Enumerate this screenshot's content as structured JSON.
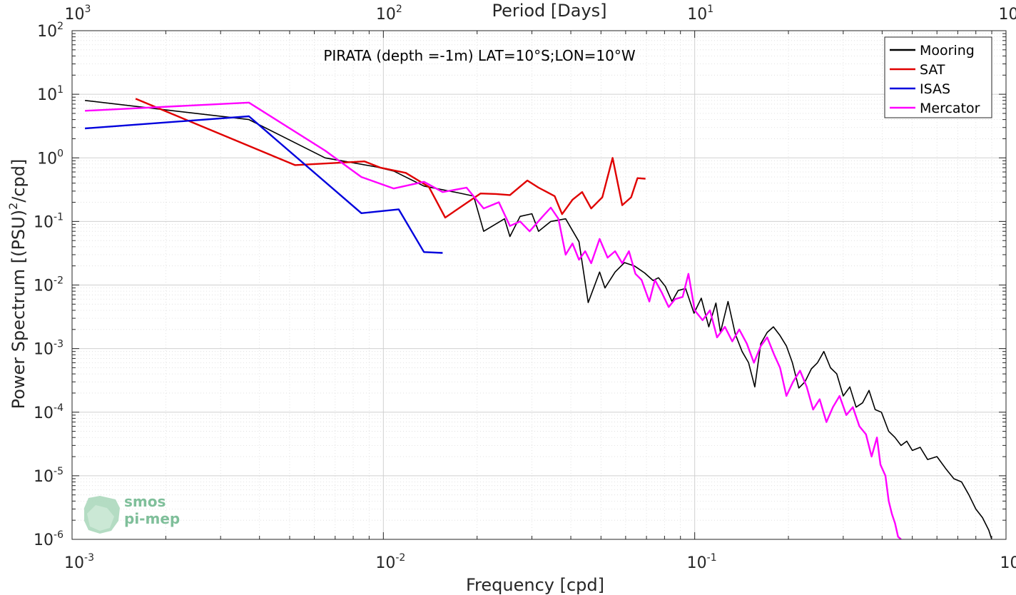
{
  "chart_data": {
    "type": "line",
    "title": "PIRATA (depth =-1m) LAT=10°S;LON=10°W",
    "xlabel": "Frequency [cpd]",
    "ylabel": "Power Spectrum [(PSU)",
    "ylabel_sup": "2",
    "ylabel_tail": "/cpd]",
    "top_xlabel": "Period [Days]",
    "x_scale": "log",
    "y_scale": "log",
    "xlim": [
      0.001,
      1
    ],
    "ylim": [
      1e-06,
      100
    ],
    "grid": true,
    "legend_position": "top-right",
    "x_ticks": [
      {
        "base": "10",
        "exp": "-3",
        "value": 0.001
      },
      {
        "base": "10",
        "exp": "-2",
        "value": 0.01
      },
      {
        "base": "10",
        "exp": "-1",
        "value": 0.1
      },
      {
        "base": "10",
        "exp": "0",
        "value": 1
      }
    ],
    "top_ticks": [
      {
        "base": "10",
        "exp": "3",
        "value": 0.001
      },
      {
        "base": "10",
        "exp": "2",
        "value": 0.01
      },
      {
        "base": "10",
        "exp": "1",
        "value": 0.1
      },
      {
        "base": "10",
        "exp": "0",
        "value": 1
      }
    ],
    "y_ticks": [
      {
        "base": "10",
        "exp": "2",
        "value": 100
      },
      {
        "base": "10",
        "exp": "1",
        "value": 10
      },
      {
        "base": "10",
        "exp": "0",
        "value": 1
      },
      {
        "base": "10",
        "exp": "-1",
        "value": 0.1
      },
      {
        "base": "10",
        "exp": "-2",
        "value": 0.01
      },
      {
        "base": "10",
        "exp": "-3",
        "value": 0.001
      },
      {
        "base": "10",
        "exp": "-4",
        "value": 0.0001
      },
      {
        "base": "10",
        "exp": "-5",
        "value": 1e-05
      },
      {
        "base": "10",
        "exp": "-6",
        "value": 1e-06
      }
    ],
    "series": [
      {
        "name": "Mooring",
        "color": "#000000",
        "stroke": 1.6,
        "points": [
          [
            0.0011,
            8.0
          ],
          [
            0.0037,
            4.0
          ],
          [
            0.0065,
            1.0
          ],
          [
            0.0095,
            0.72
          ],
          [
            0.0108,
            0.62
          ],
          [
            0.0135,
            0.36
          ],
          [
            0.0175,
            0.28
          ],
          [
            0.0195,
            0.25
          ],
          [
            0.021,
            0.07
          ],
          [
            0.0245,
            0.11
          ],
          [
            0.0255,
            0.058
          ],
          [
            0.0275,
            0.12
          ],
          [
            0.03,
            0.132
          ],
          [
            0.0315,
            0.07
          ],
          [
            0.0345,
            0.1
          ],
          [
            0.0385,
            0.11
          ],
          [
            0.0425,
            0.048
          ],
          [
            0.0455,
            0.0053
          ],
          [
            0.0495,
            0.016
          ],
          [
            0.0515,
            0.009
          ],
          [
            0.0555,
            0.016
          ],
          [
            0.0595,
            0.0225
          ],
          [
            0.064,
            0.02
          ],
          [
            0.069,
            0.0155
          ],
          [
            0.0735,
            0.0118
          ],
          [
            0.0765,
            0.013
          ],
          [
            0.0805,
            0.0095
          ],
          [
            0.0845,
            0.0055
          ],
          [
            0.0885,
            0.0082
          ],
          [
            0.0935,
            0.0088
          ],
          [
            0.0995,
            0.0036
          ],
          [
            0.105,
            0.0062
          ],
          [
            0.111,
            0.0022
          ],
          [
            0.117,
            0.0052
          ],
          [
            0.121,
            0.0018
          ],
          [
            0.128,
            0.0055
          ],
          [
            0.135,
            0.0017
          ],
          [
            0.142,
            0.0009
          ],
          [
            0.149,
            0.0006
          ],
          [
            0.156,
            0.00025
          ],
          [
            0.163,
            0.0012
          ],
          [
            0.171,
            0.0018
          ],
          [
            0.179,
            0.0022
          ],
          [
            0.188,
            0.0016
          ],
          [
            0.197,
            0.0011
          ],
          [
            0.206,
            0.0006
          ],
          [
            0.216,
            0.00024
          ],
          [
            0.226,
            0.0003
          ],
          [
            0.237,
            0.00048
          ],
          [
            0.248,
            0.0006
          ],
          [
            0.26,
            0.0009
          ],
          [
            0.273,
            0.0005
          ],
          [
            0.286,
            0.0004
          ],
          [
            0.3,
            0.00018
          ],
          [
            0.315,
            0.00025
          ],
          [
            0.33,
            0.00012
          ],
          [
            0.346,
            0.00014
          ],
          [
            0.363,
            0.00022
          ],
          [
            0.38,
            0.00011
          ],
          [
            0.398,
            0.0001
          ],
          [
            0.42,
            5e-05
          ],
          [
            0.44,
            4e-05
          ],
          [
            0.46,
            3e-05
          ],
          [
            0.48,
            3.5e-05
          ],
          [
            0.5,
            2.5e-05
          ],
          [
            0.53,
            2.8e-05
          ],
          [
            0.56,
            1.8e-05
          ],
          [
            0.6,
            2e-05
          ],
          [
            0.64,
            1.3e-05
          ],
          [
            0.68,
            9e-06
          ],
          [
            0.72,
            8e-06
          ],
          [
            0.76,
            5e-06
          ],
          [
            0.8,
            3e-06
          ],
          [
            0.84,
            2.2e-06
          ],
          [
            0.88,
            1.4e-06
          ],
          [
            0.9,
            1e-06
          ]
        ]
      },
      {
        "name": "SAT",
        "color": "#e00000",
        "stroke": 2.4,
        "points": [
          [
            0.0016,
            8.5
          ],
          [
            0.0052,
            0.77
          ],
          [
            0.0087,
            0.88
          ],
          [
            0.0098,
            0.7
          ],
          [
            0.0118,
            0.58
          ],
          [
            0.014,
            0.35
          ],
          [
            0.0158,
            0.115
          ],
          [
            0.0205,
            0.275
          ],
          [
            0.023,
            0.27
          ],
          [
            0.0255,
            0.26
          ],
          [
            0.029,
            0.44
          ],
          [
            0.0315,
            0.34
          ],
          [
            0.0355,
            0.25
          ],
          [
            0.0375,
            0.13
          ],
          [
            0.0405,
            0.22
          ],
          [
            0.0435,
            0.29
          ],
          [
            0.0465,
            0.16
          ],
          [
            0.0505,
            0.24
          ],
          [
            0.0545,
            1.0
          ],
          [
            0.0585,
            0.18
          ],
          [
            0.0625,
            0.24
          ],
          [
            0.0655,
            0.48
          ],
          [
            0.0695,
            0.47
          ]
        ]
      },
      {
        "name": "ISAS",
        "color": "#0000dd",
        "stroke": 2.4,
        "points": [
          [
            0.0011,
            2.9
          ],
          [
            0.0037,
            4.5
          ],
          [
            0.0085,
            0.135
          ],
          [
            0.0112,
            0.155
          ],
          [
            0.0135,
            0.033
          ],
          [
            0.0155,
            0.032
          ]
        ]
      },
      {
        "name": "Mercator",
        "color": "#ff00ff",
        "stroke": 2.4,
        "points": [
          [
            0.0011,
            5.5
          ],
          [
            0.0037,
            7.4
          ],
          [
            0.0065,
            1.3
          ],
          [
            0.0085,
            0.5
          ],
          [
            0.0108,
            0.33
          ],
          [
            0.0135,
            0.42
          ],
          [
            0.0155,
            0.29
          ],
          [
            0.0185,
            0.34
          ],
          [
            0.021,
            0.16
          ],
          [
            0.0235,
            0.2
          ],
          [
            0.0255,
            0.085
          ],
          [
            0.0275,
            0.1
          ],
          [
            0.0295,
            0.07
          ],
          [
            0.0325,
            0.12
          ],
          [
            0.0345,
            0.165
          ],
          [
            0.0365,
            0.11
          ],
          [
            0.0385,
            0.03
          ],
          [
            0.0405,
            0.045
          ],
          [
            0.0425,
            0.025
          ],
          [
            0.0445,
            0.034
          ],
          [
            0.0465,
            0.022
          ],
          [
            0.0495,
            0.053
          ],
          [
            0.0525,
            0.027
          ],
          [
            0.0555,
            0.034
          ],
          [
            0.0585,
            0.022
          ],
          [
            0.0615,
            0.034
          ],
          [
            0.0645,
            0.015
          ],
          [
            0.0675,
            0.012
          ],
          [
            0.0715,
            0.0055
          ],
          [
            0.0745,
            0.012
          ],
          [
            0.0785,
            0.0075
          ],
          [
            0.0825,
            0.0045
          ],
          [
            0.0865,
            0.006
          ],
          [
            0.0915,
            0.0065
          ],
          [
            0.0955,
            0.015
          ],
          [
            0.1,
            0.004
          ],
          [
            0.106,
            0.0028
          ],
          [
            0.112,
            0.004
          ],
          [
            0.118,
            0.0015
          ],
          [
            0.125,
            0.0022
          ],
          [
            0.132,
            0.0013
          ],
          [
            0.139,
            0.002
          ],
          [
            0.147,
            0.0012
          ],
          [
            0.155,
            0.0006
          ],
          [
            0.163,
            0.0011
          ],
          [
            0.171,
            0.0015
          ],
          [
            0.18,
            0.0008
          ],
          [
            0.188,
            0.0005
          ],
          [
            0.197,
            0.00018
          ],
          [
            0.207,
            0.0003
          ],
          [
            0.218,
            0.00045
          ],
          [
            0.229,
            0.00025
          ],
          [
            0.24,
            0.00011
          ],
          [
            0.252,
            0.00016
          ],
          [
            0.265,
            7e-05
          ],
          [
            0.278,
            0.00012
          ],
          [
            0.292,
            0.00018
          ],
          [
            0.307,
            9e-05
          ],
          [
            0.322,
            0.00012
          ],
          [
            0.338,
            6e-05
          ],
          [
            0.355,
            4.5e-05
          ],
          [
            0.37,
            2e-05
          ],
          [
            0.385,
            4e-05
          ],
          [
            0.395,
            1.5e-05
          ],
          [
            0.41,
            1e-05
          ],
          [
            0.42,
            4e-06
          ],
          [
            0.43,
            2.5e-06
          ],
          [
            0.44,
            1.8e-06
          ],
          [
            0.45,
            1.1e-06
          ],
          [
            0.46,
            1e-06
          ]
        ]
      }
    ]
  },
  "logo": {
    "line1": "smos",
    "line2": "pi-mep",
    "color": "#7fbf9a"
  }
}
